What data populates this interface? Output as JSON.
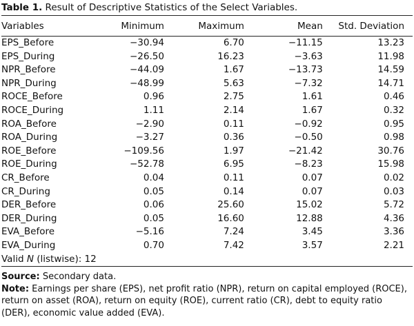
{
  "caption": {
    "label": "Table 1.",
    "text": "Result of Descriptive Statistics of the Select Variables."
  },
  "table": {
    "headers": [
      "Variables",
      "Minimum",
      "Maximum",
      "Mean",
      "Std. Deviation"
    ],
    "rows": [
      [
        "EPS_Before",
        "−30.94",
        "6.70",
        "−11.15",
        "13.23"
      ],
      [
        "EPS_During",
        "−26.50",
        "16.23",
        "−3.63",
        "11.98"
      ],
      [
        "NPR_Before",
        "−44.09",
        "1.67",
        "−13.73",
        "14.59"
      ],
      [
        "NPR_During",
        "−48.99",
        "5.63",
        "−7.32",
        "14.71"
      ],
      [
        "ROCE_Before",
        "0.96",
        "2.75",
        "1.61",
        "0.46"
      ],
      [
        "ROCE_During",
        "1.11",
        "2.14",
        "1.67",
        "0.32"
      ],
      [
        "ROA_Before",
        "−2.90",
        "0.11",
        "−0.92",
        "0.95"
      ],
      [
        "ROA_During",
        "−3.27",
        "0.36",
        "−0.50",
        "0.98"
      ],
      [
        "ROE_Before",
        "−109.56",
        "1.97",
        "−21.42",
        "30.76"
      ],
      [
        "ROE_During",
        "−52.78",
        "6.95",
        "−8.23",
        "15.98"
      ],
      [
        "CR_Before",
        "0.04",
        "0.11",
        "0.07",
        "0.02"
      ],
      [
        "CR_During",
        "0.05",
        "0.14",
        "0.07",
        "0.03"
      ],
      [
        "DER_Before",
        "0.06",
        "25.60",
        "15.02",
        "5.72"
      ],
      [
        "DER_During",
        "0.05",
        "16.60",
        "12.88",
        "4.36"
      ],
      [
        "EVA_Before",
        "−5.16",
        "7.24",
        "3.45",
        "3.36"
      ],
      [
        "EVA_During",
        "0.70",
        "7.42",
        "3.57",
        "2.21"
      ]
    ],
    "valid_n": {
      "prefix": "Valid ",
      "italic": "N",
      "suffix": " (listwise): 12"
    }
  },
  "source": {
    "label": "Source:",
    "text": " Secondary data."
  },
  "note": {
    "label": "Note:",
    "text": " Earnings per share (EPS), net profit ratio (NPR), return on capital employed (ROCE), return on asset (ROA), return on equity (ROE), current ratio (CR), debt to equity ratio (DER), economic value added (EVA)."
  }
}
